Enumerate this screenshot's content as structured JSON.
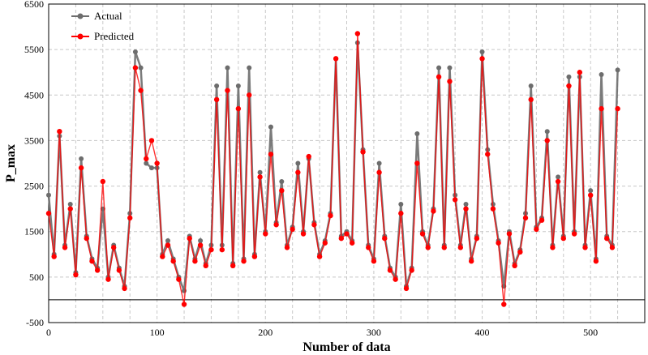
{
  "chart_data": {
    "type": "line",
    "xlabel": "Number of data",
    "ylabel": "P_max",
    "xlim": [
      0,
      550
    ],
    "ylim": [
      -500,
      6500
    ],
    "xticks": [
      0,
      100,
      200,
      300,
      400,
      500
    ],
    "yticks": [
      -500,
      500,
      1500,
      2500,
      3500,
      4500,
      5500,
      6500
    ],
    "grid": true,
    "legend": "top-left",
    "series": [
      {
        "name": "Actual",
        "color": "#6d6d6d",
        "x": [
          0,
          5,
          10,
          15,
          20,
          25,
          30,
          35,
          40,
          45,
          50,
          55,
          60,
          65,
          70,
          75,
          80,
          85,
          90,
          95,
          100,
          105,
          110,
          115,
          120,
          125,
          130,
          135,
          140,
          145,
          150,
          155,
          160,
          165,
          170,
          175,
          180,
          185,
          190,
          195,
          200,
          205,
          210,
          215,
          220,
          225,
          230,
          235,
          240,
          245,
          250,
          255,
          260,
          265,
          270,
          275,
          280,
          285,
          290,
          295,
          300,
          305,
          310,
          315,
          320,
          325,
          330,
          335,
          340,
          345,
          350,
          355,
          360,
          365,
          370,
          375,
          380,
          385,
          390,
          395,
          400,
          405,
          410,
          415,
          420,
          425,
          430,
          435,
          440,
          445,
          450,
          455,
          460,
          465,
          470,
          475,
          480,
          485,
          490,
          495,
          500,
          505,
          510,
          515,
          520,
          525
        ],
        "values": [
          2300,
          1000,
          3600,
          1200,
          2100,
          600,
          3100,
          1400,
          900,
          700,
          2000,
          500,
          1200,
          700,
          300,
          1900,
          5450,
          5100,
          3000,
          2900,
          2900,
          1000,
          1300,
          900,
          500,
          200,
          1400,
          900,
          1300,
          800,
          1200,
          4700,
          1200,
          5100,
          800,
          4700,
          900,
          5100,
          1000,
          2800,
          1500,
          3800,
          1700,
          2600,
          1200,
          1600,
          3000,
          1500,
          3100,
          1700,
          1000,
          1300,
          1900,
          5300,
          1400,
          1500,
          1300,
          5650,
          3300,
          1200,
          900,
          3000,
          1400,
          700,
          500,
          2100,
          300,
          700,
          3650,
          1500,
          1200,
          2000,
          5100,
          1200,
          5100,
          2300,
          1200,
          2100,
          900,
          1400,
          5450,
          3300,
          2100,
          1300,
          300,
          1500,
          800,
          1100,
          1900,
          4700,
          1600,
          1800,
          3700,
          1200,
          2700,
          1400,
          4900,
          1500,
          4900,
          1200,
          2400,
          900,
          4950,
          1400,
          1200,
          5050
        ],
        "markers": true
      },
      {
        "name": "Predicted",
        "color": "#ff0000",
        "x": [
          0,
          5,
          10,
          15,
          20,
          25,
          30,
          35,
          40,
          45,
          50,
          55,
          60,
          65,
          70,
          75,
          80,
          85,
          90,
          95,
          100,
          105,
          110,
          115,
          120,
          125,
          130,
          135,
          140,
          145,
          150,
          155,
          160,
          165,
          170,
          175,
          180,
          185,
          190,
          195,
          200,
          205,
          210,
          215,
          220,
          225,
          230,
          235,
          240,
          245,
          250,
          255,
          260,
          265,
          270,
          275,
          280,
          285,
          290,
          295,
          300,
          305,
          310,
          315,
          320,
          325,
          330,
          335,
          340,
          345,
          350,
          355,
          360,
          365,
          370,
          375,
          380,
          385,
          390,
          395,
          400,
          405,
          410,
          415,
          420,
          425,
          430,
          435,
          440,
          445,
          450,
          455,
          460,
          465,
          470,
          475,
          480,
          485,
          490,
          495,
          500,
          505,
          510,
          515,
          520,
          525
        ],
        "values": [
          1900,
          950,
          3700,
          1150,
          2000,
          550,
          2900,
          1350,
          850,
          650,
          2600,
          450,
          1150,
          650,
          250,
          1800,
          5100,
          4600,
          3100,
          3500,
          3000,
          950,
          1200,
          850,
          450,
          -100,
          1350,
          850,
          1200,
          750,
          1100,
          4400,
          1100,
          4600,
          750,
          4200,
          850,
          4500,
          950,
          2700,
          1450,
          3200,
          1650,
          2400,
          1150,
          1550,
          2800,
          1450,
          3150,
          1650,
          950,
          1250,
          1850,
          5300,
          1350,
          1450,
          1250,
          5850,
          3250,
          1150,
          850,
          2800,
          1350,
          650,
          450,
          1900,
          250,
          650,
          3000,
          1450,
          1150,
          1950,
          4900,
          1150,
          4800,
          2200,
          1150,
          2000,
          850,
          1350,
          5300,
          3200,
          2000,
          1250,
          -100,
          1450,
          750,
          1050,
          1800,
          4400,
          1550,
          1750,
          3500,
          1150,
          2600,
          1350,
          4700,
          1450,
          5000,
          1150,
          2300,
          850,
          4200,
          1350,
          1150,
          4200
        ],
        "markers": true
      }
    ]
  }
}
